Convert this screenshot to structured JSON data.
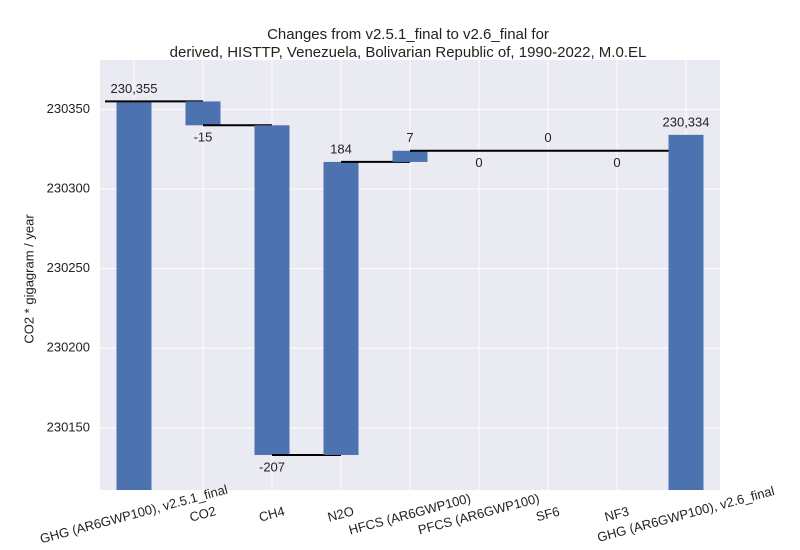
{
  "chart_data": {
    "type": "waterfall",
    "title": [
      "Changes from v2.5.1_final to v2.6_final for",
      "derived, HISTTP, Venezuela, Bolivarian Republic of, 1990-2022, M.0.EL"
    ],
    "y_label": "CO2 * gigagram / year",
    "categories": [
      "GHG (AR6GWP100), v2.5.1_final",
      "CO2",
      "CH4",
      "N2O",
      "HFCS (AR6GWP100)",
      "PFCS (AR6GWP100)",
      "SF6",
      "NF3",
      "GHG (AR6GWP100), v2.6_final"
    ],
    "values": [
      230355,
      -15,
      -207,
      184,
      7,
      0,
      0,
      0,
      230334
    ],
    "value_labels": [
      "230,355",
      "-15",
      "-207",
      "184",
      "7",
      "0",
      "0",
      "0",
      "230,334"
    ],
    "totals": [
      0,
      8
    ],
    "color": "#4c72b0",
    "ylim": [
      230111,
      230381
    ],
    "yticks": [
      230150,
      230200,
      230250,
      230300,
      230350
    ],
    "grid": true
  }
}
